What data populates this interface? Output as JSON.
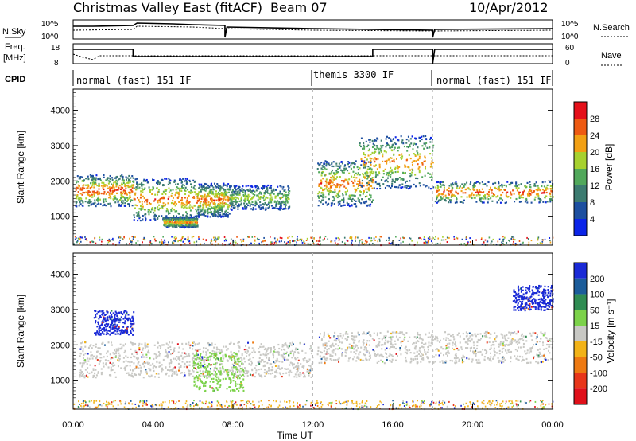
{
  "header": {
    "title": "Christmas Valley East (fitACF)",
    "beam": "Beam 07",
    "date": "10/Apr/2012"
  },
  "panels": {
    "nsky_label": "N.Sky",
    "nsky_ticks": [
      "10^5",
      "10^0"
    ],
    "nsearch_label": "N.Search",
    "nsearch_ticks": [
      "10^5",
      "10^0"
    ],
    "freq_label_1": "Freq.",
    "freq_label_2": "[MHz]",
    "freq_ticks": [
      "18",
      "8"
    ],
    "nave_label": "Nave",
    "nave_ticks": [
      "60",
      "0"
    ],
    "cpid_label": "CPID",
    "cpid_segments": [
      {
        "label": "normal (fast) 151 IF",
        "start_hour": 0.0
      },
      {
        "label": "themis 3300 IF",
        "start_hour": 12.0
      },
      {
        "label": "normal (fast) 151 IF",
        "start_hour": 18.0
      }
    ]
  },
  "axes": {
    "xlabel": "Time UT",
    "x_ticks": [
      "00:00",
      "04:00",
      "08:00",
      "12:00",
      "16:00",
      "20:00",
      "00:00"
    ],
    "ylabel": "Slant Range [km]",
    "y_ticks": [
      "1000",
      "2000",
      "3000",
      "4000"
    ]
  },
  "colorbars": {
    "power": {
      "label": "Power [dB]",
      "ticks": [
        "4",
        "8",
        "12",
        "16",
        "20",
        "24",
        "28"
      ],
      "colors": [
        "#0b24e8",
        "#1d4fa0",
        "#3c7b70",
        "#51a85b",
        "#a7d12f",
        "#f2a014",
        "#ee5a12",
        "#e5101a"
      ]
    },
    "velocity": {
      "label": "Velocity [m s⁻¹]",
      "ticks": [
        "200",
        "100",
        "50",
        "15",
        "-15",
        "-50",
        "-100",
        "-200"
      ],
      "colors": [
        "#1a2ad6",
        "#1b5c9a",
        "#2f8c52",
        "#7cd24a",
        "#c8c8c4",
        "#f2b318",
        "#ee7a12",
        "#e8361a",
        "#e0101a"
      ]
    }
  },
  "chart_data": {
    "type": "heatmap",
    "title": "Christmas Valley East (fitACF)",
    "xlabel": "Time UT",
    "ylabel": "Slant Range [km]",
    "x_range_hours": [
      0,
      24
    ],
    "y_range_km": [
      180,
      4600
    ],
    "power_scatter_blobs": [
      {
        "t": [
          0.1,
          3.0
        ],
        "r": [
          1300,
          2200
        ],
        "peak_db": 28
      },
      {
        "t": [
          3.0,
          6.2
        ],
        "r": [
          900,
          2100
        ],
        "peak_db": 26
      },
      {
        "t": [
          4.5,
          6.2
        ],
        "r": [
          700,
          1000
        ],
        "peak_db": 24
      },
      {
        "t": [
          6.2,
          7.8
        ],
        "r": [
          1000,
          1950
        ],
        "peak_db": 26
      },
      {
        "t": [
          7.8,
          10.8
        ],
        "r": [
          1200,
          1900
        ],
        "peak_db": 18
      },
      {
        "t": [
          12.2,
          15.0
        ],
        "r": [
          1300,
          2600
        ],
        "peak_db": 26
      },
      {
        "t": [
          14.3,
          18.0
        ],
        "r": [
          1800,
          3300
        ],
        "peak_db": 24
      },
      {
        "t": [
          18.1,
          24.0
        ],
        "r": [
          1400,
          2000
        ],
        "peak_db": 28
      }
    ],
    "velocity_notes": [
      {
        "t": [
          0.3,
          12.0
        ],
        "r": [
          1100,
          2100
        ],
        "velocity": "-15 to 15"
      },
      {
        "t": [
          6.0,
          8.5
        ],
        "r": [
          700,
          1800
        ],
        "velocity": "50"
      },
      {
        "t": [
          1.0,
          3.0
        ],
        "r": [
          2300,
          3000
        ],
        "velocity": "200"
      },
      {
        "t": [
          22.0,
          24.0
        ],
        "r": [
          3000,
          3700
        ],
        "velocity": "200"
      }
    ]
  }
}
